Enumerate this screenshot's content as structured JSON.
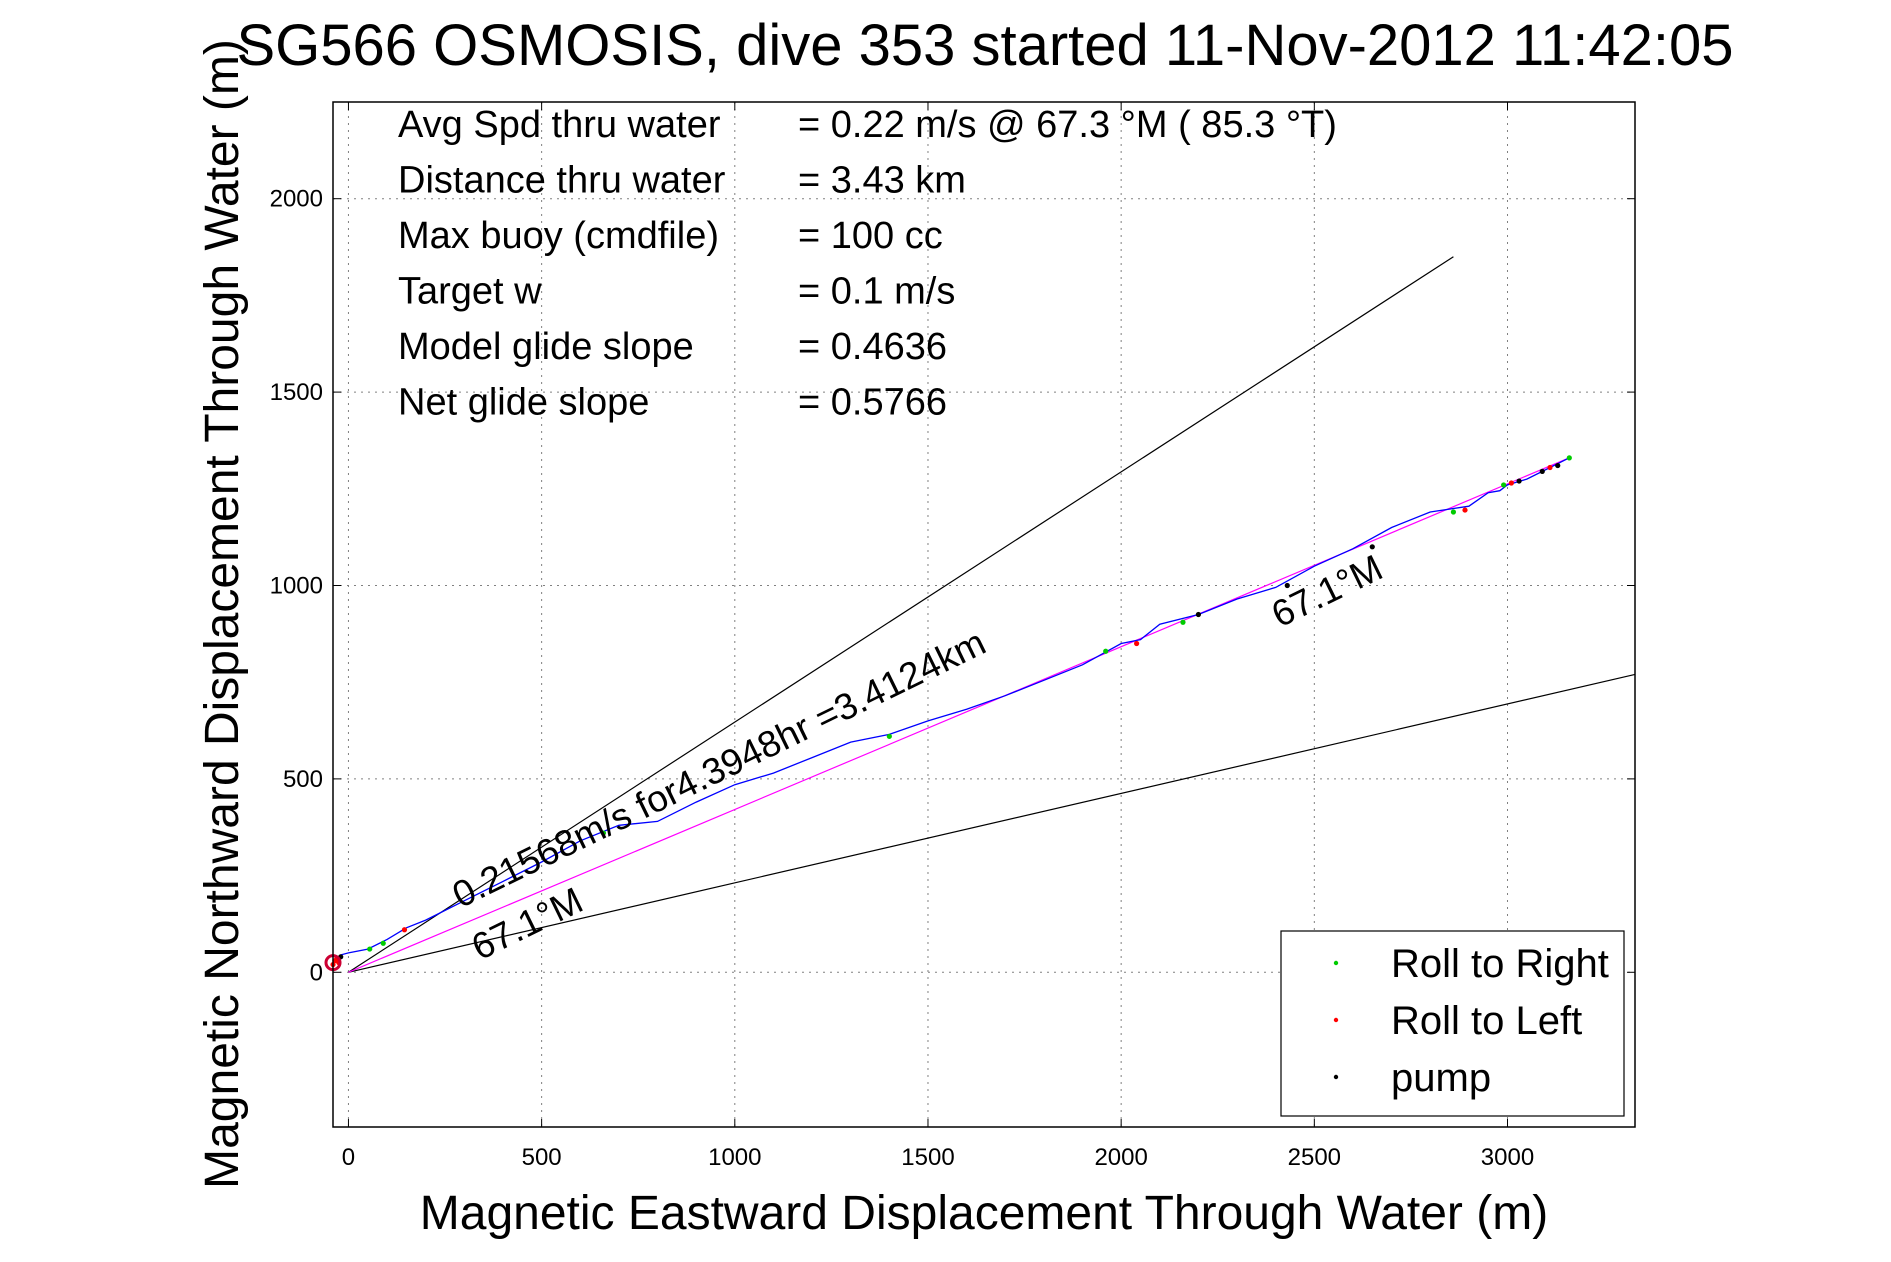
{
  "chart_data": {
    "type": "scatter",
    "title": "SG566 OSMOSIS, dive 353 started 11-Nov-2012 11:42:05",
    "xlabel": "Magnetic Eastward Displacement Through Water (m)",
    "ylabel": "Magnetic Northward Displacement Through Water (m)",
    "xlim": [
      -40,
      3330
    ],
    "ylim": [
      -400,
      2250
    ],
    "x_ticks": [
      0,
      500,
      1000,
      1500,
      2000,
      2500,
      3000
    ],
    "y_ticks": [
      0,
      500,
      1000,
      1500,
      2000
    ],
    "grid": true,
    "legend_position": "bottom-right",
    "info_lines": [
      {
        "label": "Avg Spd thru water",
        "value": "=  0.22 m/s @  67.3 °M ( 85.3 °T)"
      },
      {
        "label": "Distance thru water",
        "value": "=  3.43 km"
      },
      {
        "label": "Max buoy (cmdfile)",
        "value": "= 100 cc"
      },
      {
        "label": "Target w",
        "value": "= 0.1 m/s"
      },
      {
        "label": "Model glide slope",
        "value": "= 0.4636"
      },
      {
        "label": "Net glide slope",
        "value": "= 0.5766"
      }
    ],
    "annotations": [
      {
        "text": "0.21568m/s for4.3948hr =3.4124km",
        "x": 290,
        "y": 165,
        "angle_deg": 26
      },
      {
        "text": "67.1°M",
        "x": 340,
        "y": 30,
        "angle_deg": 26
      },
      {
        "text": "67.1°M",
        "x": 2410,
        "y": 890,
        "angle_deg": 26
      }
    ],
    "lines": [
      {
        "name": "envelope-upper",
        "color": "#000000",
        "x": [
          0,
          2860
        ],
        "y": [
          0,
          1850
        ]
      },
      {
        "name": "envelope-lower",
        "color": "#000000",
        "x": [
          0,
          3330
        ],
        "y": [
          0,
          770
        ]
      },
      {
        "name": "net-track",
        "color": "#ff00ff",
        "x": [
          0,
          3160
        ],
        "y": [
          0,
          1330
        ]
      }
    ],
    "track": {
      "color": "#0000ff",
      "x": [
        -35,
        -20,
        0,
        50,
        100,
        150,
        200,
        300,
        400,
        500,
        600,
        700,
        800,
        900,
        1000,
        1100,
        1200,
        1300,
        1400,
        1500,
        1600,
        1700,
        1800,
        1900,
        2000,
        2050,
        2100,
        2200,
        2300,
        2400,
        2500,
        2600,
        2700,
        2800,
        2900,
        2950,
        2980,
        3000,
        3050,
        3100,
        3160
      ],
      "y": [
        30,
        45,
        50,
        60,
        85,
        115,
        135,
        185,
        235,
        285,
        340,
        380,
        390,
        440,
        485,
        515,
        555,
        595,
        615,
        650,
        680,
        715,
        755,
        795,
        850,
        860,
        900,
        925,
        965,
        995,
        1050,
        1095,
        1150,
        1190,
        1205,
        1240,
        1245,
        1260,
        1275,
        1300,
        1330
      ]
    },
    "series": [
      {
        "name": "Roll to Right",
        "color": "#00cc00",
        "x": [
          55,
          90,
          660,
          1400,
          1960,
          2160,
          2860,
          2990,
          3160
        ],
        "y": [
          60,
          75,
          360,
          610,
          830,
          905,
          1190,
          1260,
          1330
        ]
      },
      {
        "name": "Roll to Left",
        "color": "#ff0000",
        "x": [
          -40,
          -35,
          -30,
          -25,
          145,
          2040,
          2890,
          3010,
          3110
        ],
        "y": [
          20,
          30,
          35,
          25,
          110,
          850,
          1195,
          1265,
          1305
        ]
      },
      {
        "name": "pump",
        "color": "#000000",
        "x": [
          -20,
          2200,
          2430,
          2650,
          3030,
          3090,
          3130
        ],
        "y": [
          40,
          925,
          1000,
          1100,
          1270,
          1295,
          1310
        ]
      }
    ]
  }
}
